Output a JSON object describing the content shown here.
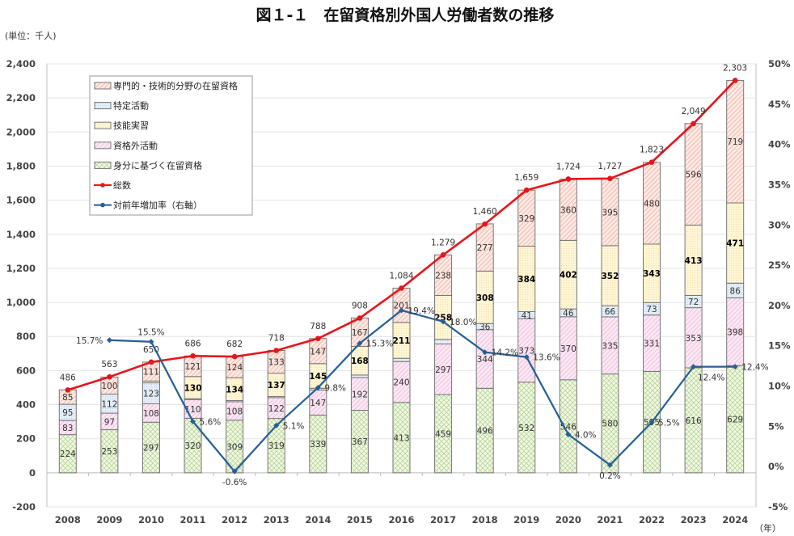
{
  "chart_data": {
    "type": "bar",
    "stacked": true,
    "title": "図１-１　在留資格別外国人労働者数の推移",
    "unit_label": "(単位：千人)",
    "x_unit_label": "（年）",
    "categories": [
      "2008",
      "2009",
      "2010",
      "2011",
      "2012",
      "2013",
      "2014",
      "2015",
      "2016",
      "2017",
      "2018",
      "2019",
      "2020",
      "2021",
      "2022",
      "2023",
      "2024"
    ],
    "left_axis": {
      "ylim": [
        -200,
        2400
      ],
      "ticks": [
        "-200",
        "0",
        "200",
        "400",
        "600",
        "800",
        "1,000",
        "1,200",
        "1,400",
        "1,600",
        "1,800",
        "2,000",
        "2,200",
        "2,400"
      ]
    },
    "right_axis": {
      "ylim": [
        -5,
        50
      ],
      "ticks": [
        "-5%",
        "0%",
        "5%",
        "10%",
        "15%",
        "20%",
        "25%",
        "30%",
        "35%",
        "40%",
        "45%",
        "50%"
      ]
    },
    "grid": true,
    "legend_position": "top-left",
    "series": [
      {
        "name": "身分に基づく在留資格",
        "color": "#c9dfa9",
        "values": [
          224,
          253,
          297,
          320,
          309,
          319,
          339,
          367,
          413,
          459,
          496,
          532,
          546,
          580,
          595,
          616,
          629
        ]
      },
      {
        "name": "資格外活動",
        "color": "#f2b8dc",
        "values": [
          83,
          97,
          108,
          110,
          108,
          122,
          147,
          192,
          240,
          297,
          344,
          373,
          370,
          335,
          331,
          353,
          398
        ]
      },
      {
        "name": "特定活動",
        "color": "#bcd3ea",
        "values": [
          95,
          112,
          123,
          5,
          7,
          7,
          10,
          15,
          19,
          27,
          36,
          41,
          46,
          66,
          73,
          72,
          86
        ]
      },
      {
        "name": "技能実習",
        "color": "#fbe7a6",
        "values": [
          0,
          0,
          11,
          130,
          134,
          137,
          145,
          168,
          211,
          258,
          308,
          384,
          402,
          352,
          343,
          413,
          471
        ]
      },
      {
        "name": "専門的・技術的分野の在留資格",
        "color": "#f4a99a",
        "values": [
          85,
          100,
          111,
          121,
          124,
          133,
          147,
          167,
          201,
          238,
          277,
          329,
          360,
          395,
          480,
          596,
          719
        ]
      }
    ],
    "segment_labels": [
      [
        "224",
        "253",
        "297",
        "320",
        "309",
        "319",
        "339",
        "367",
        "413",
        "459",
        "496",
        "532",
        "546",
        "580",
        "595",
        "616",
        "629"
      ],
      [
        "83",
        "97",
        "108",
        "110",
        "108",
        "122",
        "147",
        "192",
        "240",
        "297",
        "344",
        "373",
        "370",
        "335",
        "331",
        "353",
        "398"
      ],
      [
        "95",
        "112",
        "123",
        "",
        "",
        "",
        "",
        "",
        "",
        "",
        "36",
        "41",
        "46",
        "66",
        "73",
        "72",
        "86"
      ],
      [
        "",
        "",
        "",
        "130",
        "134",
        "137",
        "145",
        "168",
        "211",
        "258",
        "308",
        "384",
        "402",
        "352",
        "343",
        "413",
        "471"
      ],
      [
        "85",
        "100",
        "111",
        "121",
        "124",
        "133",
        "147",
        "167",
        "201",
        "238",
        "277",
        "329",
        "360",
        "395",
        "480",
        "596",
        "719"
      ]
    ],
    "total": {
      "name": "総数",
      "color": "#e8141b",
      "values": [
        486,
        563,
        650,
        686,
        682,
        718,
        788,
        908,
        1084,
        1279,
        1460,
        1659,
        1724,
        1727,
        1823,
        2049,
        2303
      ],
      "labels": [
        "486",
        "563",
        "650",
        "686",
        "682",
        "718",
        "788",
        "908",
        "1,084",
        "1,279",
        "1,460",
        "1,659",
        "1,724",
        "1,727",
        "1,823",
        "2,049",
        "2,303"
      ]
    },
    "growth": {
      "name": "対前年増加率（右軸）",
      "color": "#265f96",
      "axis": "right",
      "values": [
        null,
        15.7,
        15.5,
        5.6,
        -0.6,
        5.1,
        9.8,
        15.3,
        19.4,
        18.0,
        14.2,
        13.6,
        4.0,
        0.2,
        5.5,
        12.4,
        12.4
      ],
      "labels": [
        "",
        "15.7%",
        "15.5%",
        "5.6%",
        "-0.6%",
        "5.1%",
        "9.8%",
        "15.3%",
        "19.4%",
        "18.0%",
        "14.2%",
        "13.6%",
        "4.0%",
        "0.2%",
        "5.5%",
        "12.4%",
        "12.4%"
      ]
    },
    "legend": [
      "専門的・技術的分野の在留資格",
      "特定活動",
      "技能実習",
      "資格外活動",
      "身分に基づく在留資格",
      "総数",
      "対前年増加率（右軸）"
    ]
  }
}
